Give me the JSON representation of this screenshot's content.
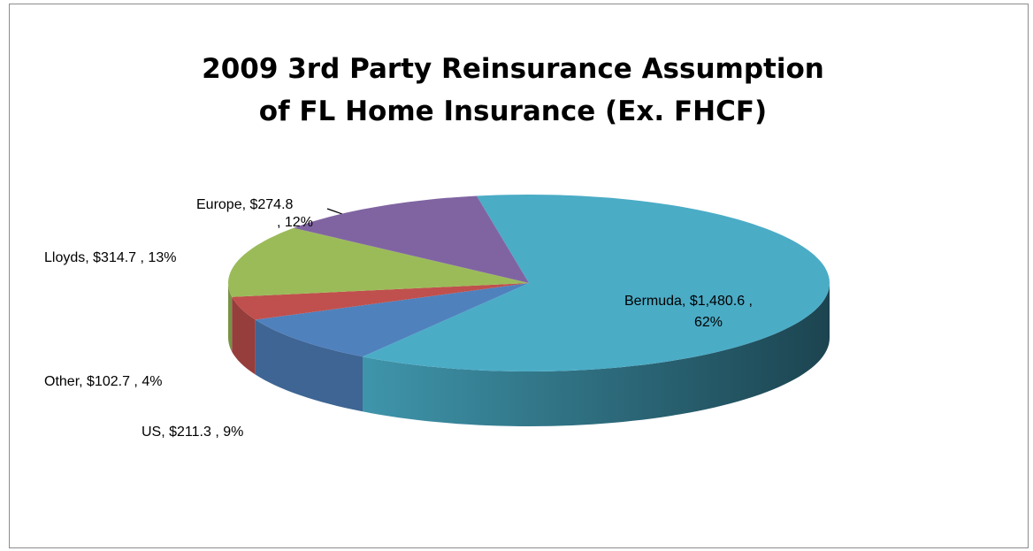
{
  "chart_data": {
    "type": "pie",
    "title": [
      "2009 3rd Party Reinsurance Assumption",
      "of FL Home Insurance (Ex. FHCF)"
    ],
    "categories": [
      "Bermuda",
      "US",
      "Other",
      "Lloyds",
      "Europe"
    ],
    "values": [
      1480.6,
      211.3,
      102.7,
      314.7,
      274.8
    ],
    "value_labels": [
      "$1,480.6",
      "$211.3",
      "$102.7",
      "$314.7",
      "$274.8"
    ],
    "percent_labels": [
      "62%",
      "9%",
      "4%",
      "13%",
      "12%"
    ],
    "colors": [
      "#4bacc6",
      "#4f81bd",
      "#c0504d",
      "#9bbb59",
      "#8064a2"
    ],
    "three_d": true
  }
}
